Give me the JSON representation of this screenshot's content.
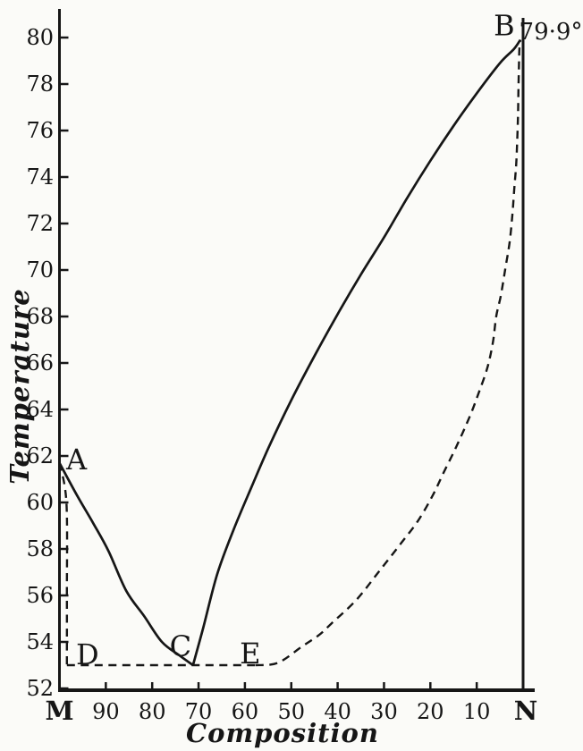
{
  "figure": {
    "background": "#fbfbf8",
    "ink_color": "#161616",
    "description": "Eutectic temperature-composition phase diagram of two substances M and N"
  },
  "chart_data": {
    "type": "line",
    "title": "",
    "xlabel": "Composition",
    "ylabel": "Temperature",
    "x_axis": {
      "left_end_label": "M",
      "right_end_label": "N",
      "tick_values": [
        90,
        80,
        70,
        60,
        50,
        40,
        30,
        20,
        10
      ],
      "tick_labels": [
        "90",
        "80",
        "70",
        "60",
        "50",
        "40",
        "30",
        "20",
        "10"
      ],
      "range": [
        100,
        0
      ]
    },
    "y_axis": {
      "tick_values": [
        52,
        54,
        56,
        58,
        60,
        62,
        64,
        66,
        68,
        70,
        72,
        74,
        76,
        78,
        80
      ],
      "tick_labels": [
        "52",
        "54",
        "56",
        "58",
        "60",
        "62",
        "64",
        "66",
        "68",
        "70",
        "72",
        "74",
        "76",
        "78",
        "80"
      ],
      "range": [
        52,
        80
      ]
    },
    "series": [
      {
        "name": "liquidus-A-C",
        "style": "solid",
        "points": [
          [
            100,
            61.7
          ],
          [
            96.2,
            60.3
          ],
          [
            92.7,
            59.1
          ],
          [
            89.4,
            57.9
          ],
          [
            85.6,
            56.2
          ],
          [
            81.7,
            55.1
          ],
          [
            77.9,
            54.0
          ],
          [
            74.0,
            53.4
          ],
          [
            71.2,
            53.0
          ]
        ]
      },
      {
        "name": "liquidus-C-B",
        "style": "solid",
        "points": [
          [
            71.2,
            53.0
          ],
          [
            69,
            54.6
          ],
          [
            66,
            56.9
          ],
          [
            62.5,
            58.8
          ],
          [
            58.5,
            60.7
          ],
          [
            54.8,
            62.4
          ],
          [
            50,
            64.4
          ],
          [
            45,
            66.3
          ],
          [
            40,
            68.1
          ],
          [
            35,
            69.8
          ],
          [
            30,
            71.4
          ],
          [
            25,
            73.1
          ],
          [
            20,
            74.7
          ],
          [
            15,
            76.2
          ],
          [
            10,
            77.6
          ],
          [
            5,
            78.9
          ],
          [
            2,
            79.5
          ],
          [
            0.6,
            79.9
          ]
        ]
      },
      {
        "name": "solidus-A-D",
        "style": "dashed",
        "points": [
          [
            100,
            61.7
          ],
          [
            98.5,
            60.0
          ],
          [
            98.4,
            56.0
          ],
          [
            98.4,
            53.0
          ]
        ]
      },
      {
        "name": "eutectic-line-D-E",
        "style": "dashed",
        "points": [
          [
            98.4,
            53.0
          ],
          [
            57.7,
            53.0
          ]
        ]
      },
      {
        "name": "solidus-E-B",
        "style": "dashed",
        "points": [
          [
            57.7,
            53.0
          ],
          [
            52.9,
            53.1
          ],
          [
            47.7,
            53.8
          ],
          [
            44,
            54.3
          ],
          [
            41.3,
            54.8
          ],
          [
            36,
            55.8
          ],
          [
            31.2,
            57.0
          ],
          [
            26.5,
            58.2
          ],
          [
            22.7,
            59.2
          ],
          [
            19.5,
            60.3
          ],
          [
            17.1,
            61.3
          ],
          [
            14.4,
            62.4
          ],
          [
            11.5,
            63.7
          ],
          [
            9.6,
            64.7
          ],
          [
            7.7,
            65.8
          ],
          [
            6.5,
            66.9
          ],
          [
            5.8,
            68.0
          ],
          [
            4.8,
            68.9
          ],
          [
            3.8,
            70.1
          ],
          [
            2.9,
            71.2
          ],
          [
            2.3,
            72.4
          ],
          [
            1.9,
            73.5
          ],
          [
            1.5,
            74.5
          ],
          [
            1.3,
            75.4
          ],
          [
            1.1,
            76.6
          ],
          [
            1.0,
            77.8
          ],
          [
            0.9,
            78.7
          ],
          [
            0.8,
            79.5
          ],
          [
            0.6,
            79.9
          ]
        ]
      }
    ],
    "points": [
      {
        "label": "A",
        "comp": 100,
        "T": 61.7
      },
      {
        "label": "B",
        "comp": 0.6,
        "T": 79.9
      },
      {
        "label": "C",
        "comp": 71.2,
        "T": 53.0
      },
      {
        "label": "D",
        "comp": 98.4,
        "T": 53.0
      },
      {
        "label": "E",
        "comp": 57.7,
        "T": 53.0
      }
    ],
    "annotations": [
      {
        "name": "melting-point-of-N",
        "text": "79·9°",
        "comp": 0,
        "T": 79.9
      }
    ],
    "legend": null,
    "grid": false
  }
}
